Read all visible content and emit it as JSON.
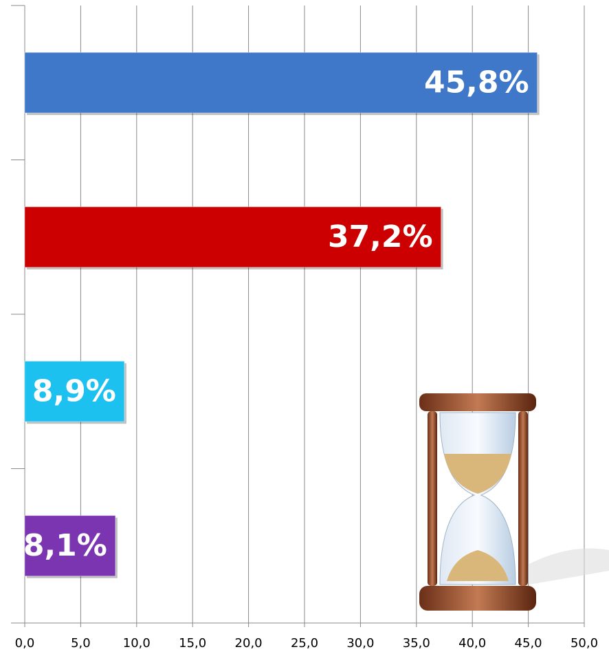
{
  "chart_data": {
    "type": "hbar",
    "categories": [
      null,
      null,
      null,
      null
    ],
    "values": [
      45.8,
      37.2,
      8.9,
      8.1
    ],
    "value_labels": [
      "45,8%",
      "37,2%",
      "8,9%",
      "8,1%"
    ],
    "colors": [
      "#3f78c8",
      "#cc0000",
      "#1cc1f0",
      "#7b35b0"
    ],
    "xlim": [
      0,
      50
    ],
    "xticks": [
      {
        "value": 0,
        "label": "0,0"
      },
      {
        "value": 5,
        "label": "5,0"
      },
      {
        "value": 10,
        "label": "10,0"
      },
      {
        "value": 15,
        "label": "15,0"
      },
      {
        "value": 20,
        "label": "20,0"
      },
      {
        "value": 25,
        "label": "25,0"
      },
      {
        "value": 30,
        "label": "30,0"
      },
      {
        "value": 35,
        "label": "35,0"
      },
      {
        "value": 40,
        "label": "40,0"
      },
      {
        "value": 45,
        "label": "45,0"
      },
      {
        "value": 50,
        "label": "50,0"
      }
    ],
    "grid": true
  }
}
